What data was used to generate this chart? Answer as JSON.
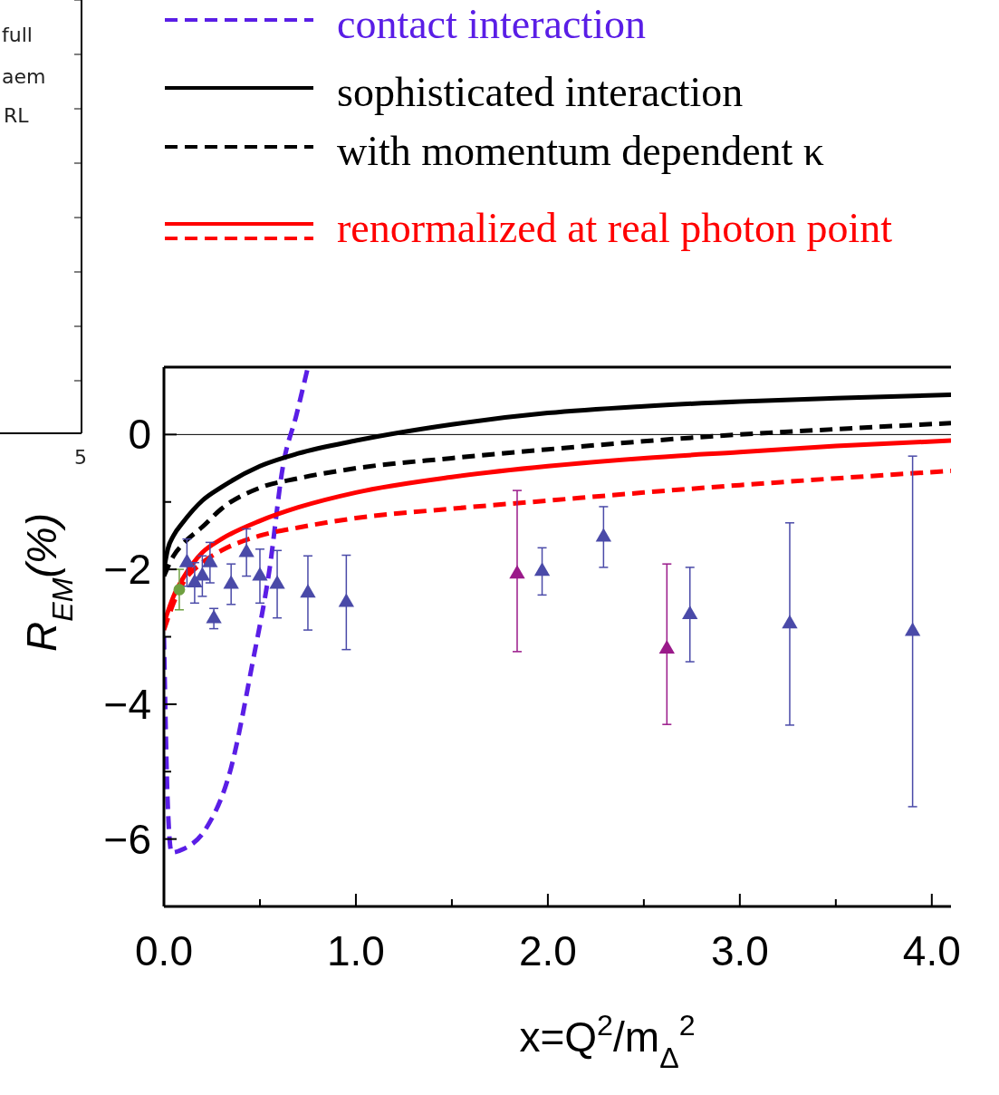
{
  "chart_data": [
    {
      "type": "other",
      "annotations": [
        "full",
        "aem",
        "RL",
        "5"
      ]
    },
    {
      "type": "line",
      "xlabel": "x=Q$^{2}$/m$_{Δ}$$^{2}$",
      "ylabel": "R$_{EM}$(%)",
      "legend": "top",
      "xlim": [
        0,
        4.1
      ],
      "ylim": [
        -7,
        1
      ],
      "xticks": [
        {
          "value": 0,
          "label": "0.0"
        },
        {
          "value": 0.5,
          "label": null
        },
        {
          "value": 1,
          "label": "1.0"
        },
        {
          "value": 1.5,
          "label": null
        },
        {
          "value": 2,
          "label": "2.0"
        },
        {
          "value": 2.5,
          "label": null
        },
        {
          "value": 3,
          "label": "3.0"
        },
        {
          "value": 3.5,
          "label": null
        },
        {
          "value": 4,
          "label": "4.0"
        }
      ],
      "yticks": [
        {
          "value": -7,
          "label": null
        },
        -6,
        {
          "value": -5,
          "label": null
        },
        -4,
        {
          "value": -3,
          "label": null
        },
        -2,
        {
          "value": -1,
          "label": null
        },
        0
      ],
      "ref_lines": [
        {
          "axis": "y",
          "value": 0,
          "color": "#000000"
        }
      ],
      "series": [
        {
          "name": "contact interaction",
          "color": "#5a1ee6",
          "line_style": "dashed",
          "x": [
            0,
            0.02,
            0.04,
            0.1,
            0.22,
            0.35,
            0.46,
            0.55,
            0.62,
            0.69,
            0.75
          ],
          "values": [
            -3.0,
            -5.5,
            -6.2,
            -6.15,
            -5.84,
            -4.94,
            -3.41,
            -2.0,
            -0.47,
            0.29,
            1.0
          ]
        },
        {
          "name": "sophisticated interaction",
          "color": "#000000",
          "line_style": "solid",
          "x": [
            0,
            0.02,
            0.05,
            0.1,
            0.2,
            0.3,
            0.5,
            0.7,
            1.0,
            1.5,
            2.0,
            2.5,
            3.0,
            3.5,
            4.1
          ],
          "values": [
            -2.0,
            -1.7,
            -1.5,
            -1.3,
            -0.98,
            -0.78,
            -0.47,
            -0.28,
            -0.09,
            0.15,
            0.32,
            0.42,
            0.49,
            0.54,
            0.59
          ]
        },
        {
          "name": "with momentum dependent κ",
          "color": "#000000",
          "line_style": "dashed",
          "x": [
            0,
            0.05,
            0.1,
            0.2,
            0.3,
            0.5,
            0.7,
            1.0,
            1.5,
            2.0,
            2.5,
            3.0,
            3.5,
            4.1
          ],
          "values": [
            -2.1,
            -1.8,
            -1.62,
            -1.37,
            -1.1,
            -0.79,
            -0.65,
            -0.5,
            -0.35,
            -0.22,
            -0.1,
            0.0,
            0.08,
            0.17
          ]
        },
        {
          "name": "renormalized at real photon point",
          "color": "#ff0000",
          "line_style": "solid",
          "x": [
            0,
            0.05,
            0.1,
            0.2,
            0.3,
            0.5,
            0.7,
            1.0,
            1.5,
            2.0,
            2.5,
            3.0,
            3.5,
            4.1
          ],
          "values": [
            -2.8,
            -2.4,
            -2.13,
            -1.75,
            -1.55,
            -1.28,
            -1.08,
            -0.86,
            -0.63,
            -0.47,
            -0.35,
            -0.26,
            -0.17,
            -0.09
          ]
        },
        {
          "color": "#ff0000",
          "line_style": "dashed",
          "x": [
            0,
            0.05,
            0.1,
            0.2,
            0.3,
            0.5,
            0.7,
            1.0,
            1.5,
            2.0,
            2.5,
            3.0,
            3.5,
            4.1
          ],
          "values": [
            -2.9,
            -2.5,
            -2.2,
            -1.9,
            -1.72,
            -1.5,
            -1.38,
            -1.24,
            -1.1,
            -0.98,
            -0.86,
            -0.75,
            -0.65,
            -0.54
          ]
        },
        {
          "type": "scatter",
          "marker": "triangle",
          "color": "#4a4aa8",
          "x": [
            0.12,
            0.16,
            0.2,
            0.24,
            0.26,
            0.35,
            0.43,
            0.5,
            0.59,
            0.75,
            0.95,
            1.97,
            2.29,
            2.74,
            3.26,
            3.9
          ],
          "values": [
            -1.9,
            -2.2,
            -2.1,
            -1.9,
            -2.73,
            -2.22,
            -1.75,
            -2.1,
            -2.22,
            -2.35,
            -2.49,
            -2.03,
            -1.52,
            -2.67,
            -2.81,
            -2.92
          ],
          "errors": [
            0.35,
            0.3,
            0.3,
            0.3,
            0.15,
            0.3,
            0.35,
            0.4,
            0.5,
            0.55,
            0.7,
            0.35,
            0.45,
            0.7,
            1.5,
            2.6
          ]
        },
        {
          "type": "scatter",
          "marker": "triangle",
          "color": "#9a1a8a",
          "x": [
            1.84,
            2.62
          ],
          "values": [
            -2.07,
            -3.18
          ],
          "errors": [
            [
              -3.22,
              -0.83
            ],
            [
              -4.3,
              -1.92
            ]
          ]
        },
        {
          "type": "scatter",
          "marker": "circle",
          "color": "#6fa040",
          "x": [
            0.08
          ],
          "values": [
            -2.3
          ],
          "errors": [
            0.3
          ]
        }
      ]
    }
  ]
}
